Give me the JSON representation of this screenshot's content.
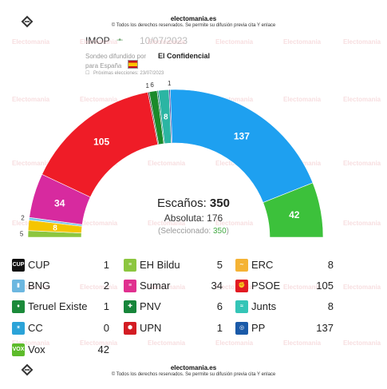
{
  "header": {
    "brand": "electomania.es",
    "notice": "© Todos los derechos reservados. Se permite su difusión previa cita Y enlace"
  },
  "poll": {
    "pollster": "IMOP",
    "date": "10/07/2023",
    "diffused_by": "Sondeo difundido por",
    "media": "El Confidencial",
    "for_country": "para España",
    "next_elections": "Próximas elecciones: 23/07/2023"
  },
  "summary": {
    "seats_label": "Escaños:",
    "seats_total": "350",
    "majority_label": "Absoluta: 176",
    "selected_prefix": "(Seleccionado: ",
    "selected_value": "350",
    "selected_suffix": ")"
  },
  "footer": {
    "brand": "electomania.es",
    "notice": "© Todos los derechos reservados. Se permite su difusión previa cita Y enlace"
  },
  "watermark": "Electomania",
  "chart_data": {
    "type": "parliament",
    "total_seats": 350,
    "parties": [
      {
        "name": "Vox",
        "seats": 42,
        "color": "#63be21"
      },
      {
        "name": "CC",
        "seats": 0,
        "color": "#ffd700"
      },
      {
        "name": "UPN",
        "seats": 1,
        "color": "#d31c23"
      },
      {
        "name": "Teruel Existe",
        "seats": 1,
        "color": "#00745d"
      },
      {
        "name": "PP",
        "seats": 137,
        "color": "#1f9bf0"
      },
      {
        "name": "BNG",
        "seats": 2,
        "color": "#7ac5e8"
      },
      {
        "name": "Sumar",
        "seats": 34,
        "color": "#d72a9f"
      },
      {
        "name": "PSOE",
        "seats": 105,
        "color": "#ef1c27"
      },
      {
        "name": "EH Bildu",
        "seats": 5,
        "color": "#8cc63f"
      },
      {
        "name": "ERC",
        "seats": 8,
        "color": "#f5b335"
      },
      {
        "name": "Junts",
        "seats": 8,
        "color": "#22b4a9"
      },
      {
        "name": "PNV",
        "seats": 6,
        "color": "#138a3a"
      },
      {
        "name": "CUP",
        "seats": 1,
        "color": "#222222"
      }
    ],
    "arc_order": [
      {
        "name": "EH Bildu",
        "seats": 5,
        "color": "#8cc63f",
        "label": "5"
      },
      {
        "name": "ERC",
        "seats": 8,
        "color": "#f5c500",
        "label": "8"
      },
      {
        "name": "BNG",
        "seats": 2,
        "color": "#7ac5e8",
        "label": "2"
      },
      {
        "name": "Sumar",
        "seats": 34,
        "color": "#d72a9f",
        "label": "34"
      },
      {
        "name": "PSOE",
        "seats": 105,
        "color": "#ef1c27",
        "label": "105"
      },
      {
        "name": "CUP",
        "seats": 1,
        "color": "#333333",
        "label": "1"
      },
      {
        "name": "PNV",
        "seats": 6,
        "color": "#1a8a2a",
        "label": "6"
      },
      {
        "name": "Teruel Existe",
        "seats": 1,
        "color": "#00745d",
        "label": ""
      },
      {
        "name": "Junts",
        "seats": 8,
        "color": "#2bb5a3",
        "label": "8"
      },
      {
        "name": "UPN",
        "seats": 1,
        "color": "#333399",
        "label": "1"
      },
      {
        "name": "CC",
        "seats": 0,
        "color": "#ffd700",
        "label": ""
      },
      {
        "name": "PP",
        "seats": 137,
        "color": "#1ea0f0",
        "label": "137"
      },
      {
        "name": "Vox",
        "seats": 42,
        "color": "#3cc13b",
        "label": "42"
      }
    ],
    "legend": [
      {
        "name": "CUP",
        "seats": "1",
        "icon": "cup-icon",
        "color": "#111111",
        "glyph": "CUP"
      },
      {
        "name": "EH Bildu",
        "seats": "5",
        "icon": "eh-bildu-icon",
        "color": "#8cc63f",
        "glyph": "≡"
      },
      {
        "name": "ERC",
        "seats": "8",
        "icon": "erc-icon",
        "color": "#f5b335",
        "glyph": "∼"
      },
      {
        "name": "BNG",
        "seats": "2",
        "icon": "bng-icon",
        "color": "#6cb7e0",
        "glyph": "▮"
      },
      {
        "name": "Sumar",
        "seats": "34",
        "icon": "sumar-icon",
        "color": "#e0308f",
        "glyph": "≡"
      },
      {
        "name": "PSOE",
        "seats": "105",
        "icon": "psoe-icon",
        "color": "#e21b23",
        "glyph": "✊"
      },
      {
        "name": "Teruel Existe",
        "seats": "1",
        "icon": "teruel-existe-icon",
        "color": "#1b8a3a",
        "glyph": "♦"
      },
      {
        "name": "PNV",
        "seats": "6",
        "icon": "pnv-icon",
        "color": "#17853a",
        "glyph": "✚"
      },
      {
        "name": "Junts",
        "seats": "8",
        "icon": "junts-icon",
        "color": "#34c5b7",
        "glyph": "≈"
      },
      {
        "name": "CC",
        "seats": "0",
        "icon": "cc-icon",
        "color": "#2ba3d8",
        "glyph": "✶"
      },
      {
        "name": "UPN",
        "seats": "1",
        "icon": "upn-icon",
        "color": "#d31c23",
        "glyph": "⬢"
      },
      {
        "name": "PP",
        "seats": "137",
        "icon": "pp-icon",
        "color": "#1a5aa8",
        "glyph": "◎"
      },
      {
        "name": "Vox",
        "seats": "42",
        "icon": "vox-icon",
        "color": "#5dbb2a",
        "glyph": "VOX"
      }
    ]
  }
}
